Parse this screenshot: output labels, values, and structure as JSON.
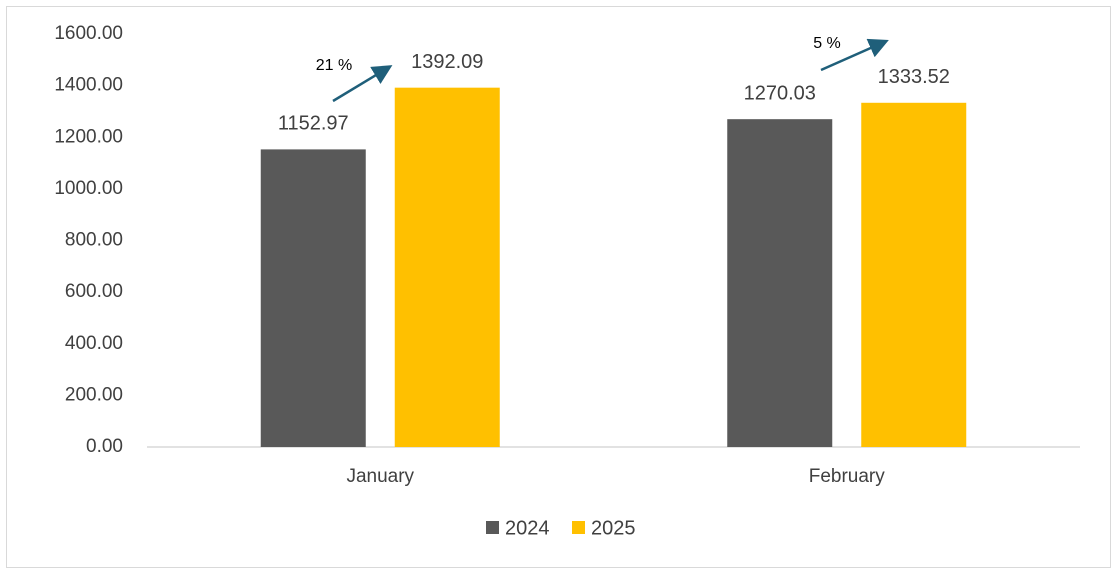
{
  "chart_data": {
    "type": "bar",
    "categories": [
      "January",
      "February"
    ],
    "series": [
      {
        "name": "2024",
        "color": "#595959",
        "values": [
          1152.97,
          1270.03
        ]
      },
      {
        "name": "2025",
        "color": "#ffc000",
        "values": [
          1392.09,
          1333.52
        ]
      }
    ],
    "ylim": [
      0,
      1600
    ],
    "yticks": [
      {
        "value": 0,
        "label": "0.00"
      },
      {
        "value": 200,
        "label": "200.00"
      },
      {
        "value": 400,
        "label": "400.00"
      },
      {
        "value": 600,
        "label": "600.00"
      },
      {
        "value": 800,
        "label": "800.00"
      },
      {
        "value": 1000,
        "label": "1000.00"
      },
      {
        "value": 1200,
        "label": "1200.00"
      },
      {
        "value": 1400,
        "label": "1400.00"
      },
      {
        "value": 1600,
        "label": "1600.00"
      }
    ],
    "grid": false,
    "legend": "bottom",
    "annotations": [
      "21 %",
      "5 %"
    ]
  }
}
